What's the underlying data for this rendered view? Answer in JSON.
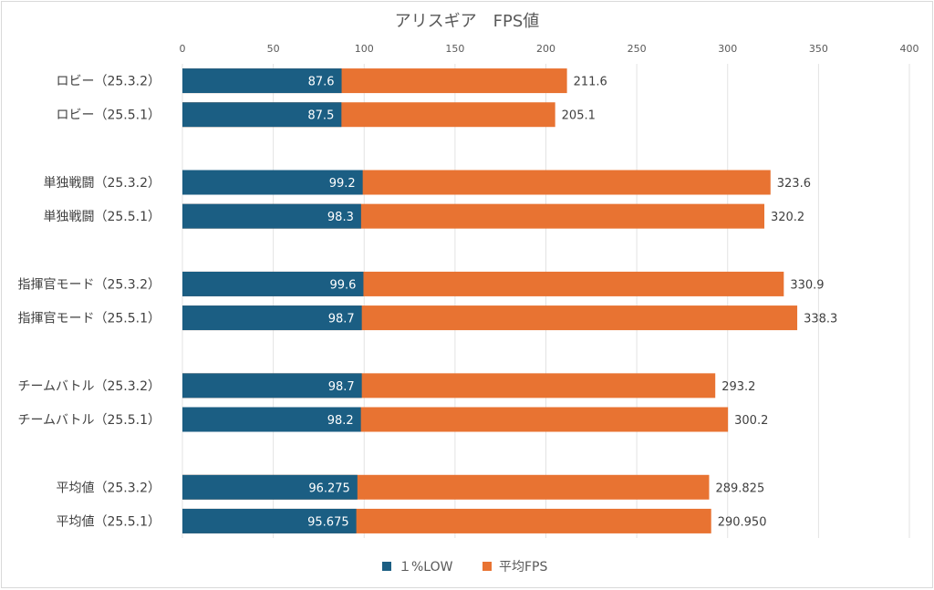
{
  "chart_data": {
    "type": "bar",
    "orientation": "horizontal",
    "title": "アリスギア　FPS値",
    "xlabel": "",
    "ylabel": "",
    "xlim": [
      0,
      400
    ],
    "xticks": [
      0,
      50,
      100,
      150,
      200,
      250,
      300,
      350,
      400
    ],
    "grid": true,
    "legend_position": "bottom",
    "categories": [
      "ロビー（25.3.2）",
      "ロビー（25.5.1）",
      "",
      "単独戦闘（25.3.2）",
      "単独戦闘（25.5.1）",
      "",
      "指揮官モード（25.3.2）",
      "指揮官モード（25.5.1）",
      "",
      "チームバトル（25.3.2）",
      "チームバトル（25.5.1）",
      "",
      "平均値（25.3.2）",
      "平均値（25.5.1）"
    ],
    "series": [
      {
        "name": "１%LOW",
        "color": "#1b5e83",
        "values": [
          87.6,
          87.5,
          null,
          99.2,
          98.3,
          null,
          99.6,
          98.7,
          null,
          98.7,
          98.2,
          null,
          96.275,
          95.675
        ],
        "labels": [
          "87.6",
          "87.5",
          "",
          "99.2",
          "98.3",
          "",
          "99.6",
          "98.7",
          "",
          "98.7",
          "98.2",
          "",
          "96.275",
          "95.675"
        ]
      },
      {
        "name": "平均FPS",
        "color": "#e87332",
        "values": [
          211.6,
          205.1,
          null,
          323.6,
          320.2,
          null,
          330.9,
          338.3,
          null,
          293.2,
          300.2,
          null,
          289.825,
          290.95
        ],
        "labels": [
          "211.6",
          "205.1",
          "",
          "323.6",
          "320.2",
          "",
          "330.9",
          "338.3",
          "",
          "293.2",
          "300.2",
          "",
          "289.825",
          "290.950"
        ]
      }
    ]
  }
}
